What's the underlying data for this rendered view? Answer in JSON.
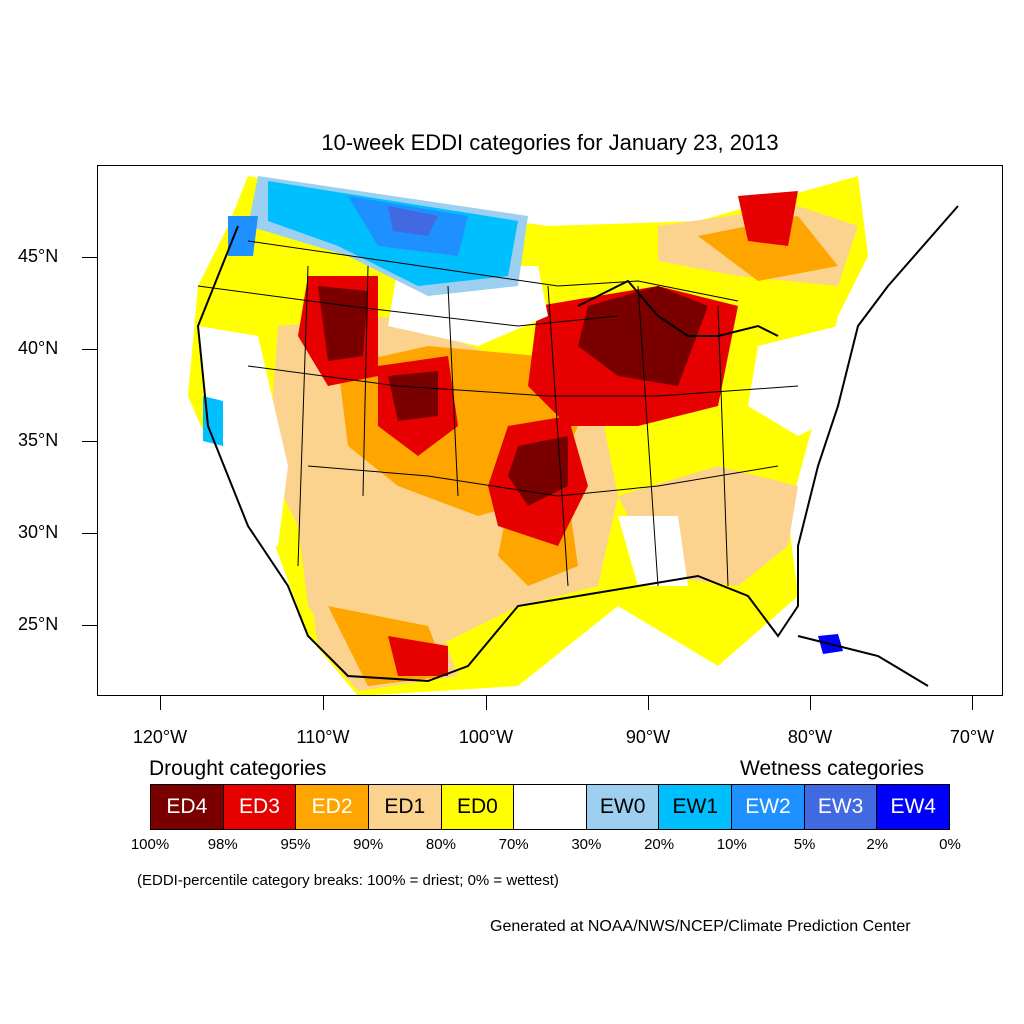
{
  "title": "10-week EDDI categories for January 23, 2013",
  "map": {
    "lat_labels": [
      "45°N",
      "40°N",
      "35°N",
      "30°N",
      "25°N"
    ],
    "lon_labels": [
      "120°W",
      "110°W",
      "100°W",
      "90°W",
      "80°W",
      "70°W"
    ],
    "regions": [
      {
        "category": "ED4",
        "area": "upper-midwest-wisconsin-michigan"
      },
      {
        "category": "ED4",
        "area": "oklahoma-kansas"
      },
      {
        "category": "ED4",
        "area": "colorado"
      },
      {
        "category": "ED4",
        "area": "idaho-montana"
      },
      {
        "category": "ED3",
        "area": "great-plains"
      },
      {
        "category": "EW1",
        "area": "montana-canada-border"
      },
      {
        "category": "EW2",
        "area": "northwest-washington"
      }
    ]
  },
  "legend": {
    "drought_title": "Drought categories",
    "wetness_title": "Wetness categories",
    "categories": [
      {
        "label": "ED4",
        "color": "#7a0000",
        "text_color": "#ffffff"
      },
      {
        "label": "ED3",
        "color": "#e60000",
        "text_color": "#ffffff"
      },
      {
        "label": "ED2",
        "color": "#ffa500",
        "text_color": "#ffffff"
      },
      {
        "label": "ED1",
        "color": "#fcd38e",
        "text_color": "#000000"
      },
      {
        "label": "ED0",
        "color": "#ffff00",
        "text_color": "#000000"
      },
      {
        "label": "",
        "color": "#ffffff",
        "text_color": "#000000"
      },
      {
        "label": "EW0",
        "color": "#9dd0f0",
        "text_color": "#000000"
      },
      {
        "label": "EW1",
        "color": "#00bfff",
        "text_color": "#000000"
      },
      {
        "label": "EW2",
        "color": "#1e90ff",
        "text_color": "#ffffff"
      },
      {
        "label": "EW3",
        "color": "#4169e1",
        "text_color": "#ffffff"
      },
      {
        "label": "EW4",
        "color": "#0000ff",
        "text_color": "#ffffff"
      }
    ],
    "breaks": [
      "100%",
      "98%",
      "95%",
      "90%",
      "80%",
      "70%",
      "30%",
      "20%",
      "10%",
      "5%",
      "2%",
      "0%"
    ]
  },
  "note": "(EDDI-percentile category breaks: 100% = driest; 0% = wettest)",
  "credit": "Generated at NOAA/NWS/NCEP/Climate Prediction Center"
}
